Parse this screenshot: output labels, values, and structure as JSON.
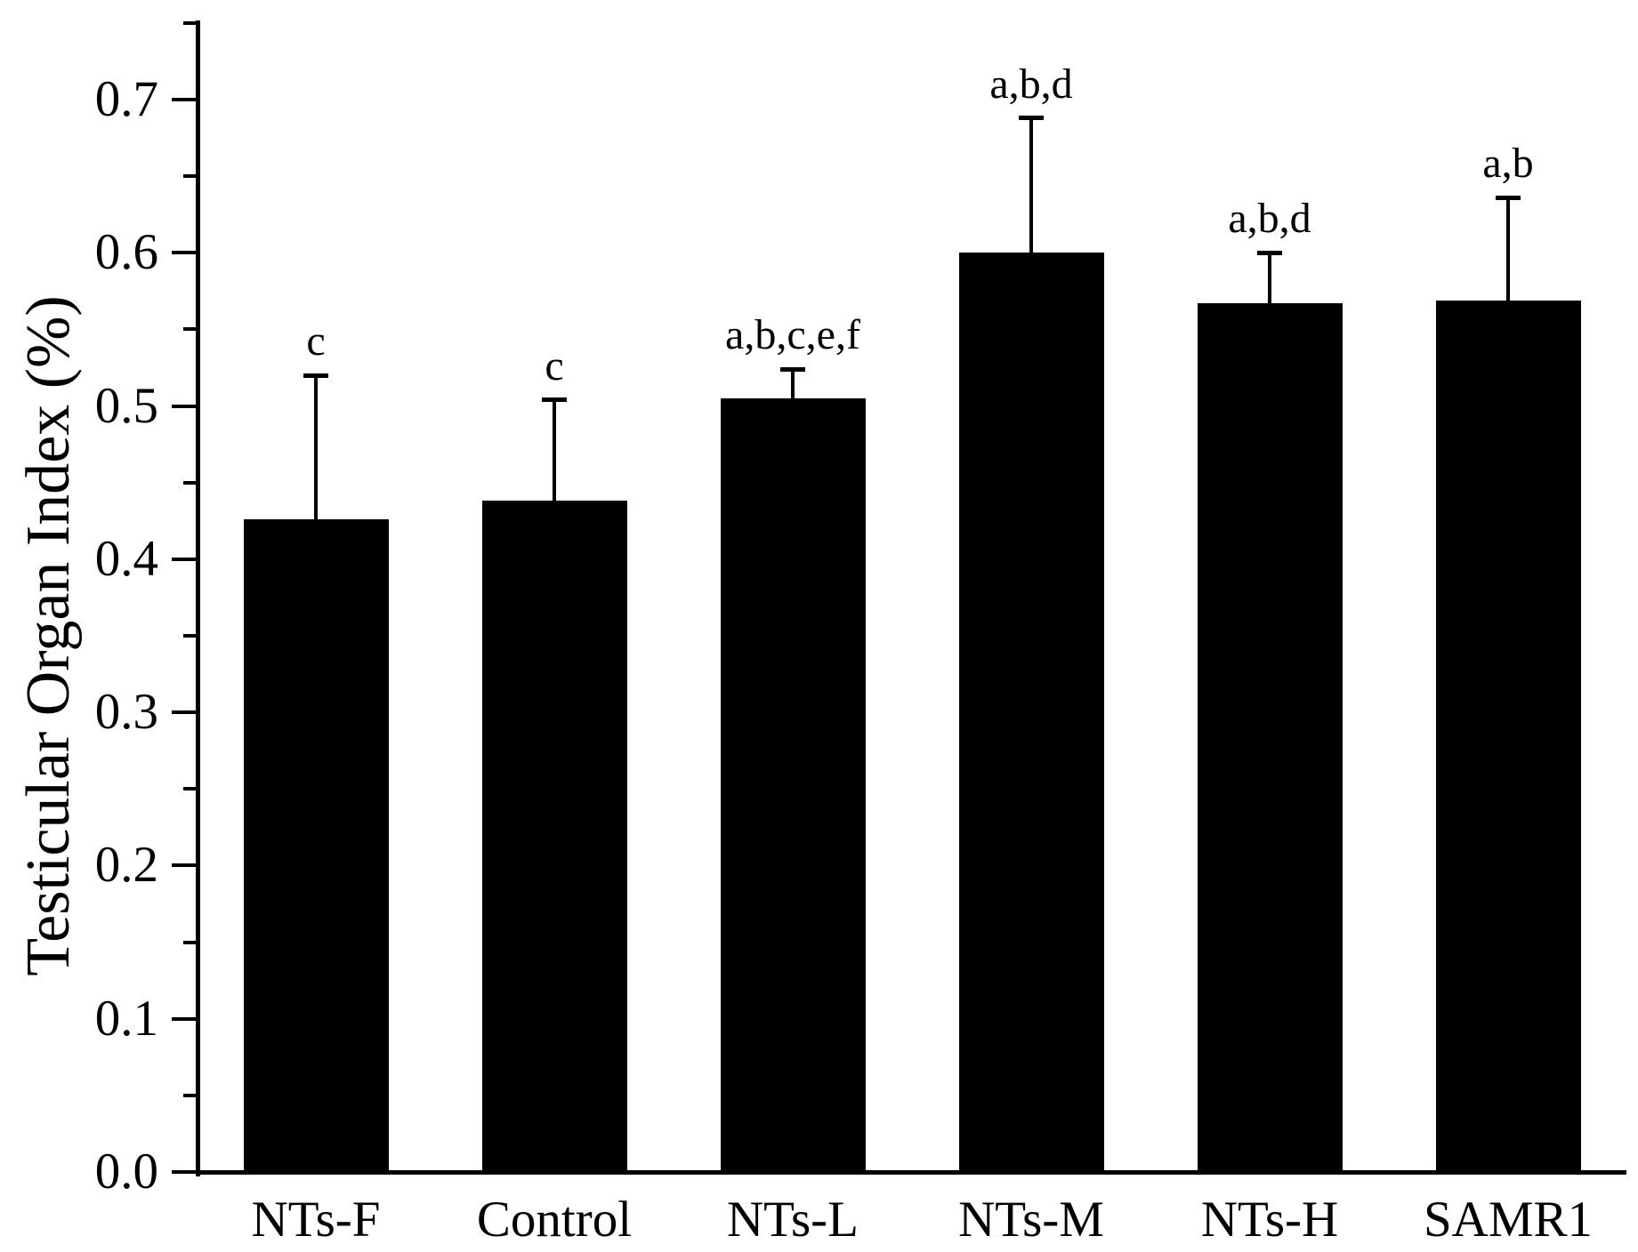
{
  "chart_data": {
    "type": "bar",
    "title": "",
    "xlabel": "",
    "ylabel": "Testicular Organ Index (%)",
    "ylim": [
      0,
      0.75
    ],
    "ytick_step": 0.1,
    "yminor_step": 0.05,
    "ytick_labels": [
      "0.0",
      "0.1",
      "0.2",
      "0.3",
      "0.4",
      "0.5",
      "0.6",
      "0.7"
    ],
    "grid": "off",
    "legend_position": "none",
    "categories": [
      "NTs-F",
      "Control",
      "NTs-L",
      "NTs-M",
      "NTs-H",
      "SAMR1"
    ],
    "series": [
      {
        "name": "Testicular Organ Index",
        "values": [
          0.426,
          0.438,
          0.505,
          0.6,
          0.567,
          0.569
        ],
        "errors_upper": [
          0.094,
          0.066,
          0.019,
          0.088,
          0.033,
          0.067
        ]
      }
    ],
    "error_bar_tops": [
      0.52,
      0.504,
      0.524,
      0.688,
      0.6,
      0.636
    ],
    "annotations": [
      "c",
      "c",
      "a,b,c,e,f",
      "a,b,d",
      "a,b,d",
      "a,b"
    ],
    "bar_color": "#000000",
    "axis_color": "#000000",
    "background_color": "#ffffff"
  }
}
